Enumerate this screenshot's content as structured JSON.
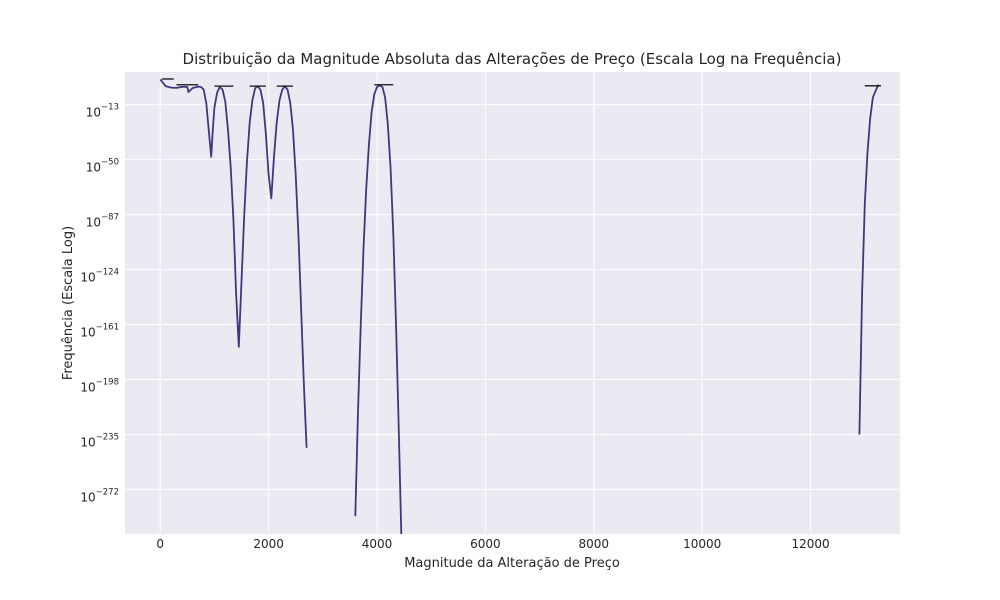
{
  "chart_data": {
    "type": "line",
    "title": "Distribuição da Magnitude Absoluta das Alterações de Preço (Escala Log na Frequência)",
    "xlabel": "Magnitude da Alteração de Preço",
    "ylabel": "Frequência (Escala Log)",
    "xlim": [
      -650,
      13650
    ],
    "ylim_log10": [
      -302,
      9
    ],
    "yscale": "log",
    "grid": true,
    "background_color": "#eaeaf2",
    "line_color": "#45357b",
    "marker_color": "#111111",
    "x_ticks": [
      {
        "value": 0,
        "label": "0"
      },
      {
        "value": 2000,
        "label": "2000"
      },
      {
        "value": 4000,
        "label": "4000"
      },
      {
        "value": 6000,
        "label": "6000"
      },
      {
        "value": 8000,
        "label": "8000"
      },
      {
        "value": 10000,
        "label": "10000"
      },
      {
        "value": 12000,
        "label": "12000"
      }
    ],
    "y_ticks": [
      {
        "exp": -13,
        "base": "10",
        "exp_label": "−13"
      },
      {
        "exp": -50,
        "base": "10",
        "exp_label": "−50"
      },
      {
        "exp": -87,
        "base": "10",
        "exp_label": "−87"
      },
      {
        "exp": -124,
        "base": "10",
        "exp_label": "−124"
      },
      {
        "exp": -161,
        "base": "10",
        "exp_label": "−161"
      },
      {
        "exp": -198,
        "base": "10",
        "exp_label": "−198"
      },
      {
        "exp": -235,
        "base": "10",
        "exp_label": "−235"
      },
      {
        "exp": -272,
        "base": "10",
        "exp_label": "−272"
      }
    ],
    "series": [
      {
        "segments": [
          [
            [
              0,
              4
            ],
            [
              100,
              -0.5
            ],
            [
              200,
              -1.5
            ],
            [
              300,
              -1.7
            ],
            [
              400,
              -1
            ],
            [
              500,
              -1
            ],
            [
              520,
              -4.5
            ],
            [
              600,
              -1.8
            ],
            [
              700,
              -0.8
            ],
            [
              750,
              -1
            ],
            [
              800,
              -2.7
            ],
            [
              850,
              -12
            ],
            [
              900,
              -32
            ],
            [
              940,
              -48
            ],
            [
              970,
              -30
            ],
            [
              1000,
              -15
            ],
            [
              1050,
              -5
            ],
            [
              1100,
              -1
            ],
            [
              1150,
              -3
            ],
            [
              1200,
              -11
            ],
            [
              1250,
              -30
            ],
            [
              1300,
              -55
            ],
            [
              1350,
              -90
            ],
            [
              1400,
              -140
            ],
            [
              1450,
              -176
            ],
            [
              1500,
              -132
            ],
            [
              1550,
              -88
            ],
            [
              1600,
              -52
            ],
            [
              1650,
              -25
            ],
            [
              1700,
              -10
            ],
            [
              1750,
              -2
            ],
            [
              1800,
              -0.5
            ],
            [
              1850,
              -3
            ],
            [
              1900,
              -12
            ],
            [
              1950,
              -33
            ],
            [
              2000,
              -60
            ],
            [
              2050,
              -76
            ],
            [
              2100,
              -48
            ],
            [
              2150,
              -25
            ],
            [
              2200,
              -10
            ],
            [
              2250,
              -3
            ],
            [
              2300,
              -0.5
            ],
            [
              2350,
              -3
            ],
            [
              2400,
              -12
            ],
            [
              2450,
              -30
            ],
            [
              2500,
              -60
            ],
            [
              2550,
              -100
            ],
            [
              2600,
              -150
            ],
            [
              2650,
              -200
            ],
            [
              2700,
              -244
            ]
          ],
          [
            [
              3600,
              -290
            ],
            [
              3650,
              -220
            ],
            [
              3700,
              -160
            ],
            [
              3750,
              -110
            ],
            [
              3800,
              -70
            ],
            [
              3850,
              -40
            ],
            [
              3900,
              -18
            ],
            [
              3950,
              -6
            ],
            [
              4000,
              -1
            ],
            [
              4050,
              0
            ],
            [
              4100,
              -1
            ],
            [
              4150,
              -8
            ],
            [
              4200,
              -26
            ],
            [
              4250,
              -56
            ],
            [
              4300,
              -100
            ],
            [
              4350,
              -160
            ],
            [
              4400,
              -230
            ],
            [
              4450,
              -305
            ]
          ],
          [
            [
              12900,
              -235
            ],
            [
              12950,
              -140
            ],
            [
              13000,
              -80
            ],
            [
              13050,
              -45
            ],
            [
              13100,
              -22
            ],
            [
              13150,
              -8
            ],
            [
              13250,
              0.5
            ]
          ]
        ]
      }
    ],
    "histogram_markers": [
      {
        "x": [
          30,
          250
        ],
        "log10": 4.3
      },
      {
        "x": [
          300,
          520
        ],
        "log10": 0.4
      },
      {
        "x": [
          520,
          700
        ],
        "log10": 0.4
      },
      {
        "x": [
          1000,
          1350
        ],
        "log10": -0.5
      },
      {
        "x": [
          1650,
          1950
        ],
        "log10": -0.5
      },
      {
        "x": [
          2150,
          2450
        ],
        "log10": -0.5
      },
      {
        "x": [
          3950,
          4300
        ],
        "log10": 0.4
      },
      {
        "x": [
          13000,
          13300
        ],
        "log10": -0.3
      }
    ]
  }
}
